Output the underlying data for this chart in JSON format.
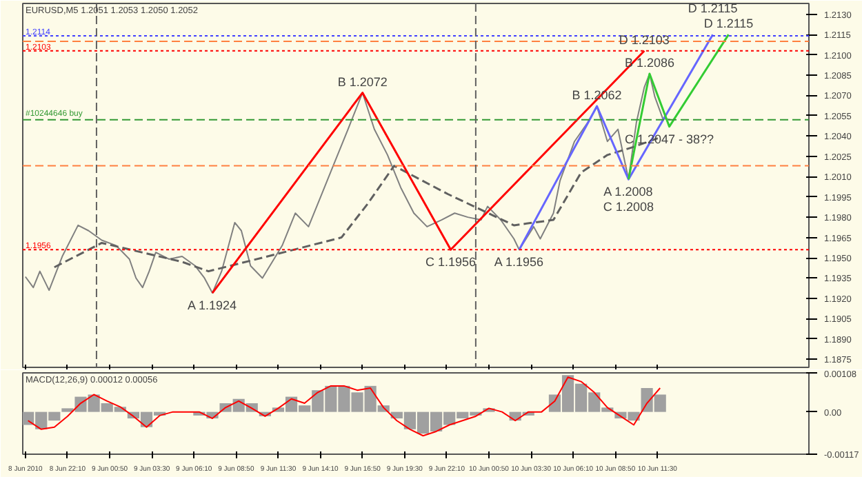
{
  "chart_data": [
    {
      "type": "line",
      "title": "EURUSD,M5  1.2051 1.2053 1.2050 1.2052",
      "tick_labels": "y",
      "grid": false,
      "xlim": [
        "2010-06-08T19:20",
        "2010-06-10T21:05"
      ],
      "xticks": [
        {
          "value": "2010-06-08T19:30",
          "label": null
        },
        {
          "value": "2010-06-08T22:10",
          "label": null
        },
        {
          "value": "2010-06-09T00:50",
          "label": null
        },
        {
          "value": "2010-06-09T03:30",
          "label": null
        },
        {
          "value": "2010-06-09T06:10",
          "label": null
        },
        {
          "value": "2010-06-09T08:50",
          "label": null
        },
        {
          "value": "2010-06-09T11:30",
          "label": null
        },
        {
          "value": "2010-06-09T14:10",
          "label": null
        },
        {
          "value": "2010-06-09T16:50",
          "label": null
        },
        {
          "value": "2010-06-09T19:30",
          "label": null
        },
        {
          "value": "2010-06-09T22:10",
          "label": null
        },
        {
          "value": "2010-06-10T00:50",
          "label": null
        },
        {
          "value": "2010-06-10T03:30",
          "label": null
        },
        {
          "value": "2010-06-10T06:10",
          "label": null
        },
        {
          "value": "2010-06-10T08:50",
          "label": null
        },
        {
          "value": "2010-06-10T11:30",
          "label": null
        }
      ],
      "ylim": [
        1.1869,
        1.2138
      ],
      "yticks": [
        {
          "value": 1.213,
          "label": "1.2130"
        },
        {
          "value": 1.2115,
          "label": "1.2115"
        },
        {
          "value": 1.21,
          "label": "1.2100"
        },
        {
          "value": 1.2085,
          "label": "1.2085"
        },
        {
          "value": 1.207,
          "label": "1.2070"
        },
        {
          "value": 1.2055,
          "label": "1.2055"
        },
        {
          "value": 1.204,
          "label": "1.2040"
        },
        {
          "value": 1.2025,
          "label": "1.2025"
        },
        {
          "value": 1.201,
          "label": "1.2010"
        },
        {
          "value": 1.1995,
          "label": "1.1995"
        },
        {
          "value": 1.198,
          "label": "1.1980"
        },
        {
          "value": 1.1965,
          "label": "1.1965"
        },
        {
          "value": 1.195,
          "label": "1.1950"
        },
        {
          "value": 1.1935,
          "label": "1.1935"
        },
        {
          "value": 1.192,
          "label": "1.1920"
        },
        {
          "value": 1.1905,
          "label": "1.1905"
        },
        {
          "value": 1.189,
          "label": "1.1890"
        },
        {
          "value": 1.1875,
          "label": "1.1875"
        }
      ],
      "series": [
        {
          "color": "#808080",
          "line_style": "solid",
          "x": [
            "2010-06-08T19:30",
            "2010-06-08T20:00",
            "2010-06-08T20:25",
            "2010-06-08T21:00",
            "2010-06-08T21:50",
            "2010-06-08T22:50",
            "2010-06-08T23:30",
            "2010-06-09T00:20",
            "2010-06-09T01:15",
            "2010-06-09T02:05",
            "2010-06-09T02:30",
            "2010-06-09T02:55",
            "2010-06-09T03:20",
            "2010-06-09T03:45",
            "2010-06-09T04:35",
            "2010-06-09T05:25",
            "2010-06-09T06:15",
            "2010-06-09T06:50",
            "2010-06-09T07:20",
            "2010-06-09T07:55",
            "2010-06-09T08:45",
            "2010-06-09T09:10",
            "2010-06-09T09:45",
            "2010-06-09T10:30",
            "2010-06-09T11:45",
            "2010-06-09T12:35",
            "2010-06-09T13:25",
            "2010-06-09T14:15",
            "2010-06-09T15:05",
            "2010-06-09T15:55",
            "2010-06-09T16:50",
            "2010-06-09T17:35",
            "2010-06-09T18:25",
            "2010-06-09T19:15",
            "2010-06-09T20:05",
            "2010-06-09T20:55",
            "2010-06-09T21:50",
            "2010-06-09T22:40",
            "2010-06-09T23:30",
            "2010-06-10T00:20",
            "2010-06-10T00:45",
            "2010-06-10T01:35",
            "2010-06-10T02:25",
            "2010-06-10T02:45",
            "2010-06-10T03:40",
            "2010-06-10T04:05",
            "2010-06-10T04:55",
            "2010-06-10T05:20",
            "2010-06-10T06:15",
            "2010-06-10T07:05",
            "2010-06-10T07:40",
            "2010-06-10T08:20",
            "2010-06-10T09:00",
            "2010-06-10T09:40",
            "2010-06-10T10:10",
            "2010-06-10T10:40",
            "2010-06-10T11:00",
            "2010-06-10T11:20",
            "2010-06-10T11:50",
            "2010-06-10T12:20"
          ],
          "values": [
            1.1936,
            1.1928,
            1.194,
            1.1926,
            1.1951,
            1.1974,
            1.197,
            1.1963,
            1.1959,
            1.1949,
            1.1935,
            1.1928,
            1.194,
            1.1954,
            1.1949,
            1.1951,
            1.1944,
            1.1935,
            1.1924,
            1.194,
            1.1976,
            1.197,
            1.1944,
            1.1935,
            1.1959,
            1.1983,
            1.1973,
            1.1997,
            1.2021,
            1.2045,
            1.2072,
            1.2045,
            1.2026,
            1.2002,
            1.1983,
            1.1973,
            1.1978,
            1.1983,
            1.198,
            1.1978,
            1.1988,
            1.1978,
            1.1964,
            1.1956,
            1.1973,
            1.1964,
            1.1983,
            1.2007,
            1.2036,
            1.205,
            1.2062,
            1.2036,
            1.2045,
            1.2008,
            1.205,
            1.2076,
            1.2086,
            1.2069,
            1.2053,
            1.2052
          ]
        },
        {
          "color": "#606060",
          "line_style": "dashed",
          "x": [
            "2010-06-08T21:20",
            "2010-06-09T00:20",
            "2010-06-09T05:25",
            "2010-06-09T07:05",
            "2010-06-09T12:10",
            "2010-06-09T15:30",
            "2010-06-09T17:10",
            "2010-06-09T18:50",
            "2010-06-09T22:15",
            "2010-06-10T02:25",
            "2010-06-10T04:55",
            "2010-06-10T06:40",
            "2010-06-10T08:20",
            "2010-06-10T10:00",
            "2010-06-10T11:40"
          ],
          "values": [
            1.1943,
            1.1961,
            1.1947,
            1.194,
            1.1955,
            1.1965,
            1.199,
            1.2018,
            1.1997,
            1.1974,
            1.1978,
            1.2013,
            1.2026,
            1.2032,
            1.2039
          ]
        },
        {
          "color": "#ff0000",
          "line_style": "solid",
          "x": [
            "2010-06-09T07:20",
            "2010-06-09T16:50",
            "2010-06-09T22:25",
            "2010-06-10T10:40"
          ],
          "values": [
            1.1924,
            1.2072,
            1.1956,
            1.2103
          ]
        },
        {
          "color": "#6666ff",
          "line_style": "solid",
          "x": [
            "2010-06-10T02:45",
            "2010-06-10T07:40",
            "2010-06-10T09:40",
            "2010-06-10T15:00"
          ],
          "values": [
            1.1956,
            1.2062,
            1.2008,
            1.2115
          ]
        },
        {
          "color": "#33cc33",
          "line_style": "solid",
          "x": [
            "2010-06-10T09:40",
            "2010-06-10T11:00",
            "2010-06-10T12:15",
            "2010-06-10T16:00"
          ],
          "values": [
            1.2008,
            1.2086,
            1.2047,
            1.2115
          ]
        }
      ],
      "ref_lines": [
        {
          "axis": "y",
          "value": 1.2114,
          "label": "1.2114",
          "color": "#4040ff",
          "line_style": "dotted"
        },
        {
          "axis": "y",
          "value": 1.211,
          "color": "#ff8040",
          "line_style": "dashed"
        },
        {
          "axis": "y",
          "value": 1.2103,
          "label": "1.2103",
          "color": "#ff0000",
          "line_style": "dotted"
        },
        {
          "axis": "y",
          "value": 1.2052,
          "label": "#10244646 buy",
          "color": "#339933",
          "line_style": "dashed"
        },
        {
          "axis": "y",
          "value": 1.2018,
          "color": "#ff8040",
          "line_style": "dashed"
        },
        {
          "axis": "y",
          "value": 1.1956,
          "label": "1.1956",
          "color": "#ff0000",
          "line_style": "dotted"
        },
        {
          "axis": "x",
          "value": "2010-06-09T00:00",
          "color": "#606060",
          "line_style": "dashed"
        },
        {
          "axis": "x",
          "value": "2010-06-10T00:00",
          "color": "#606060",
          "line_style": "dashed"
        }
      ],
      "annotations": [
        {
          "text": "A 1.1924",
          "x": "2010-06-09T07:20",
          "y": 1.1924
        },
        {
          "text": "B 1.2072",
          "x": "2010-06-09T16:50",
          "y": 1.2072
        },
        {
          "text": "C 1.1956",
          "x": "2010-06-09T22:25",
          "y": 1.1956
        },
        {
          "text": "D 1.2103",
          "x": "2010-06-10T10:40",
          "y": 1.2103
        },
        {
          "text": "A 1.1956",
          "x": "2010-06-10T02:45",
          "y": 1.1956
        },
        {
          "text": "B 1.2062",
          "x": "2010-06-10T07:40",
          "y": 1.2062
        },
        {
          "text": "A 1.2008",
          "x": "2010-06-10T09:40",
          "y": 1.2008
        },
        {
          "text": "C 1.2008",
          "x": "2010-06-10T09:40",
          "y": 1.2008
        },
        {
          "text": "B 1.2086",
          "x": "2010-06-10T11:00",
          "y": 1.2086
        },
        {
          "text": "C 1.2047 - 38??",
          "x": "2010-06-10T12:15",
          "y": 1.2047
        },
        {
          "text": "D 1.2115",
          "x": "2010-06-10T16:00",
          "y": 1.2115
        },
        {
          "text": "D 1.2115",
          "x": "2010-06-10T15:00",
          "y": 1.2115
        }
      ]
    },
    {
      "type": "bar",
      "title": "MACD(12,26,9) 0.00012 0.00056",
      "grid": false,
      "xlim": [
        "2010-06-08T19:20",
        "2010-06-10T21:05"
      ],
      "xticks": [
        {
          "value": "2010-06-08T19:30",
          "label": "8 Jun 2010"
        },
        {
          "value": "2010-06-08T22:10",
          "label": "8 Jun 22:10"
        },
        {
          "value": "2010-06-09T00:50",
          "label": "9 Jun 00:50"
        },
        {
          "value": "2010-06-09T03:30",
          "label": "9 Jun 03:30"
        },
        {
          "value": "2010-06-09T06:10",
          "label": "9 Jun 06:10"
        },
        {
          "value": "2010-06-09T08:50",
          "label": "9 Jun 08:50"
        },
        {
          "value": "2010-06-09T11:30",
          "label": "9 Jun 11:30"
        },
        {
          "value": "2010-06-09T14:10",
          "label": "9 Jun 14:10"
        },
        {
          "value": "2010-06-09T16:50",
          "label": "9 Jun 16:50"
        },
        {
          "value": "2010-06-09T19:30",
          "label": "9 Jun 19:30"
        },
        {
          "value": "2010-06-09T22:10",
          "label": "9 Jun 22:10"
        },
        {
          "value": "2010-06-10T00:50",
          "label": "10 Jun 00:50"
        },
        {
          "value": "2010-06-10T03:30",
          "label": "10 Jun 03:30"
        },
        {
          "value": "2010-06-10T06:10",
          "label": "10 Jun 06:10"
        },
        {
          "value": "2010-06-10T08:50",
          "label": "10 Jun 08:50"
        },
        {
          "value": "2010-06-10T11:30",
          "label": "10 Jun 11:30"
        }
      ],
      "ylim": [
        -0.00117,
        0.00108
      ],
      "yticks": [
        {
          "value": 0.00108,
          "label": "0.00108"
        },
        {
          "value": 0,
          "label": "0.00"
        },
        {
          "value": -0.00117,
          "label": "-0.00117"
        }
      ],
      "x": [
        "2010-06-08T19:40",
        "2010-06-08T20:30",
        "2010-06-08T21:20",
        "2010-06-08T22:10",
        "2010-06-08T23:00",
        "2010-06-08T23:50",
        "2010-06-09T00:40",
        "2010-06-09T01:30",
        "2010-06-09T02:20",
        "2010-06-09T03:10",
        "2010-06-09T04:00",
        "2010-06-09T04:50",
        "2010-06-09T05:40",
        "2010-06-09T06:30",
        "2010-06-09T07:20",
        "2010-06-09T08:10",
        "2010-06-09T09:00",
        "2010-06-09T09:50",
        "2010-06-09T10:40",
        "2010-06-09T11:30",
        "2010-06-09T12:20",
        "2010-06-09T13:10",
        "2010-06-09T14:00",
        "2010-06-09T14:50",
        "2010-06-09T15:40",
        "2010-06-09T16:30",
        "2010-06-09T17:20",
        "2010-06-09T18:10",
        "2010-06-09T19:00",
        "2010-06-09T19:50",
        "2010-06-09T20:40",
        "2010-06-09T21:30",
        "2010-06-09T22:20",
        "2010-06-09T23:10",
        "2010-06-10T00:00",
        "2010-06-10T00:50",
        "2010-06-10T01:40",
        "2010-06-10T02:30",
        "2010-06-10T03:20",
        "2010-06-10T04:10",
        "2010-06-10T05:00",
        "2010-06-10T05:50",
        "2010-06-10T06:40",
        "2010-06-10T07:30",
        "2010-06-10T08:20",
        "2010-06-10T09:10",
        "2010-06-10T10:00",
        "2010-06-10T10:50",
        "2010-06-10T11:40"
      ],
      "series": [
        {
          "color": "#a0a0a0",
          "values": [
            -0.00036,
            -0.00048,
            -0.00024,
            0.0001,
            0.00042,
            0.00048,
            0.00024,
            0.00014,
            -0.00018,
            -0.00042,
            -0.0001,
            0,
            0,
            -0.0001,
            -0.00018,
            0.00024,
            0.00036,
            0.00024,
            -0.00012,
            0.00012,
            0.00042,
            0.00018,
            0.0006,
            0.00072,
            0.00072,
            0.00054,
            0.00072,
            0.00018,
            -0.00018,
            -0.00048,
            -0.0006,
            -0.00054,
            -0.00036,
            -0.00018,
            -0.0001,
            0.0001,
            0,
            -0.00024,
            -0.0001,
            0,
            0.00048,
            0.00102,
            0.00078,
            0.00054,
            0.00012,
            -0.00018,
            -0.00024,
            0.00066,
            0.00048
          ]
        },
        {
          "type": "line",
          "color": "#ff0000",
          "line_style": "solid",
          "values": [
            -0.00024,
            -0.00048,
            -0.00042,
            -0.00012,
            0.00024,
            0.00048,
            0.0003,
            0.00014,
            -0.00012,
            -0.00042,
            -0.0001,
            0,
            0,
            0,
            -0.00018,
            0.00012,
            0.0003,
            0.0001,
            -0.00012,
            0.0001,
            0.00036,
            0.00024,
            0.00054,
            0.00072,
            0.00072,
            0.0006,
            0.00066,
            0.00012,
            -0.00024,
            -0.00048,
            -0.00066,
            -0.00054,
            -0.00036,
            -0.00024,
            -0.00012,
            0.0001,
            0,
            -0.00024,
            0,
            0,
            0.0003,
            0.00096,
            0.00084,
            0.00054,
            0.00012,
            -0.00012,
            -0.00036,
            0.00024,
            0.00066
          ]
        }
      ]
    }
  ]
}
